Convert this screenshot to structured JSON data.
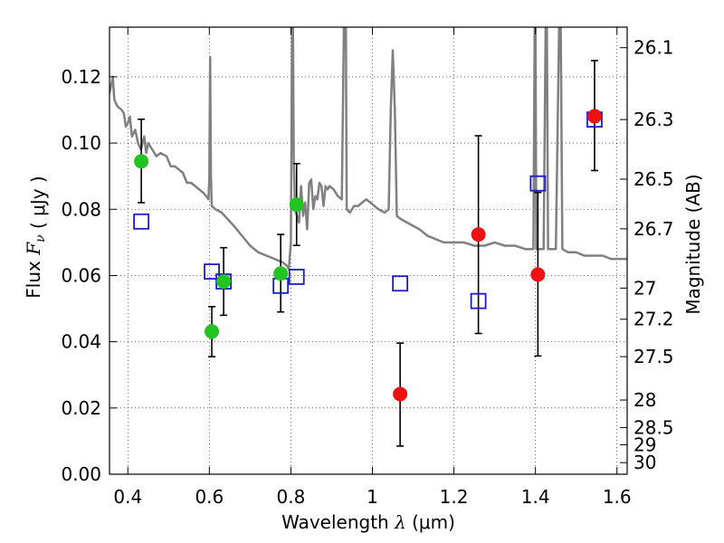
{
  "chart_data": {
    "type": "scatter",
    "xlabel": "Wavelength",
    "xlabel_symbol": "λ",
    "xlabel_unit": "(μm)",
    "ylabel": "Flux",
    "ylabel_symbol": "F",
    "ylabel_sub": "ν",
    "ylabel_unit": "( μJy )",
    "y2label": "Magnitude (AB)",
    "xlim": [
      0.355,
      1.625
    ],
    "ylim": [
      0.0,
      0.135
    ],
    "grid": true,
    "x_ticks": [
      0.4,
      0.6,
      0.8,
      1.0,
      1.2,
      1.4,
      1.6
    ],
    "x_tick_labels": [
      "0.4",
      "0.6",
      "0.8",
      "1",
      "1.2",
      "1.4",
      "1.6"
    ],
    "y_ticks": [
      0.0,
      0.02,
      0.04,
      0.06,
      0.08,
      0.1,
      0.12
    ],
    "y_tick_labels": [
      "0.00",
      "0.02",
      "0.04",
      "0.06",
      "0.08",
      "0.10",
      "0.12"
    ],
    "y2_ticks": [
      {
        "label": "26.1",
        "flux": 0.1288
      },
      {
        "label": "26.3",
        "flux": 0.1071
      },
      {
        "label": "26.5",
        "flux": 0.0891
      },
      {
        "label": "26.7",
        "flux": 0.0741
      },
      {
        "label": "27",
        "flux": 0.0562
      },
      {
        "label": "27.2",
        "flux": 0.0468
      },
      {
        "label": "27.5",
        "flux": 0.0355
      },
      {
        "label": "28",
        "flux": 0.0224
      },
      {
        "label": "28.5",
        "flux": 0.0141
      },
      {
        "label": "29",
        "flux": 0.0089
      },
      {
        "label": "30",
        "flux": 0.0035
      }
    ],
    "series": [
      {
        "marker": "circle",
        "color": "#22c322",
        "points": [
          {
            "x": 0.433,
            "y": 0.0945,
            "err_low": 0.082,
            "err_high": 0.1072
          },
          {
            "x": 0.606,
            "y": 0.0431,
            "err_low": 0.0355,
            "err_high": 0.0506
          },
          {
            "x": 0.635,
            "y": 0.0582,
            "err_low": 0.048,
            "err_high": 0.0684
          },
          {
            "x": 0.775,
            "y": 0.0606,
            "err_low": 0.049,
            "err_high": 0.0724
          },
          {
            "x": 0.814,
            "y": 0.0814,
            "err_low": 0.0691,
            "err_high": 0.0938
          }
        ]
      },
      {
        "marker": "circle",
        "color": "#ee1111",
        "points": [
          {
            "x": 1.068,
            "y": 0.0242,
            "err_low": 0.0085,
            "err_high": 0.0396
          },
          {
            "x": 1.26,
            "y": 0.0724,
            "err_low": 0.0425,
            "err_high": 0.1022
          },
          {
            "x": 1.406,
            "y": 0.0603,
            "err_low": 0.0357,
            "err_high": 0.0851
          },
          {
            "x": 1.545,
            "y": 0.1081,
            "err_low": 0.0917,
            "err_high": 0.1249
          }
        ]
      },
      {
        "marker": "square",
        "color": "#1a1acc",
        "points": [
          {
            "x": 0.433,
            "y": 0.0763
          },
          {
            "x": 0.606,
            "y": 0.0612
          },
          {
            "x": 0.635,
            "y": 0.0582
          },
          {
            "x": 0.775,
            "y": 0.0569
          },
          {
            "x": 0.814,
            "y": 0.0596
          },
          {
            "x": 1.068,
            "y": 0.0576
          },
          {
            "x": 1.26,
            "y": 0.0523
          },
          {
            "x": 1.406,
            "y": 0.0878
          },
          {
            "x": 1.545,
            "y": 0.1071
          }
        ]
      }
    ],
    "model_spectrum": {
      "color": "#808080",
      "points": [
        [
          0.355,
          0.115
        ],
        [
          0.363,
          0.12
        ],
        [
          0.367,
          0.113
        ],
        [
          0.375,
          0.111
        ],
        [
          0.385,
          0.11
        ],
        [
          0.39,
          0.109
        ],
        [
          0.395,
          0.105
        ],
        [
          0.4,
          0.106
        ],
        [
          0.405,
          0.108
        ],
        [
          0.41,
          0.102
        ],
        [
          0.418,
          0.104
        ],
        [
          0.425,
          0.1
        ],
        [
          0.432,
          0.098
        ],
        [
          0.44,
          0.102
        ],
        [
          0.445,
          0.097
        ],
        [
          0.45,
          0.1
        ],
        [
          0.46,
          0.098
        ],
        [
          0.47,
          0.096
        ],
        [
          0.48,
          0.097
        ],
        [
          0.495,
          0.096
        ],
        [
          0.505,
          0.093
        ],
        [
          0.515,
          0.093
        ],
        [
          0.525,
          0.092
        ],
        [
          0.535,
          0.091
        ],
        [
          0.545,
          0.088
        ],
        [
          0.555,
          0.088
        ],
        [
          0.565,
          0.087
        ],
        [
          0.575,
          0.086
        ],
        [
          0.585,
          0.085
        ],
        [
          0.592,
          0.084
        ],
        [
          0.598,
          0.083
        ],
        [
          0.6,
          0.09
        ],
        [
          0.602,
          0.126
        ],
        [
          0.604,
          0.09
        ],
        [
          0.606,
          0.081
        ],
        [
          0.615,
          0.08
        ],
        [
          0.63,
          0.079
        ],
        [
          0.645,
          0.077
        ],
        [
          0.66,
          0.075
        ],
        [
          0.68,
          0.072
        ],
        [
          0.7,
          0.069
        ],
        [
          0.72,
          0.067
        ],
        [
          0.74,
          0.066
        ],
        [
          0.76,
          0.065
        ],
        [
          0.78,
          0.064
        ],
        [
          0.79,
          0.063
        ],
        [
          0.795,
          0.062
        ],
        [
          0.8,
          0.07
        ],
        [
          0.803,
          0.135
        ],
        [
          0.805,
          0.135
        ],
        [
          0.807,
          0.095
        ],
        [
          0.81,
          0.08
        ],
        [
          0.82,
          0.076
        ],
        [
          0.825,
          0.087
        ],
        [
          0.83,
          0.078
        ],
        [
          0.835,
          0.082
        ],
        [
          0.84,
          0.074
        ],
        [
          0.845,
          0.088
        ],
        [
          0.85,
          0.089
        ],
        [
          0.855,
          0.08
        ],
        [
          0.86,
          0.084
        ],
        [
          0.865,
          0.083
        ],
        [
          0.87,
          0.088
        ],
        [
          0.875,
          0.087
        ],
        [
          0.88,
          0.081
        ],
        [
          0.885,
          0.087
        ],
        [
          0.89,
          0.086
        ],
        [
          0.895,
          0.087
        ],
        [
          0.905,
          0.086
        ],
        [
          0.915,
          0.084
        ],
        [
          0.925,
          0.083
        ],
        [
          0.93,
          0.135
        ],
        [
          0.935,
          0.135
        ],
        [
          0.937,
          0.08
        ],
        [
          0.945,
          0.079
        ],
        [
          0.955,
          0.081
        ],
        [
          0.965,
          0.081
        ],
        [
          0.975,
          0.082
        ],
        [
          0.985,
          0.083
        ],
        [
          0.995,
          0.082
        ],
        [
          1.005,
          0.081
        ],
        [
          1.015,
          0.08
        ],
        [
          1.03,
          0.079
        ],
        [
          1.04,
          0.08
        ],
        [
          1.045,
          0.11
        ],
        [
          1.05,
          0.128
        ],
        [
          1.055,
          0.11
        ],
        [
          1.06,
          0.078
        ],
        [
          1.07,
          0.077
        ],
        [
          1.085,
          0.076
        ],
        [
          1.1,
          0.075
        ],
        [
          1.115,
          0.074
        ],
        [
          1.135,
          0.072
        ],
        [
          1.155,
          0.071
        ],
        [
          1.175,
          0.07
        ],
        [
          1.2,
          0.07
        ],
        [
          1.225,
          0.07
        ],
        [
          1.25,
          0.069
        ],
        [
          1.275,
          0.069
        ],
        [
          1.3,
          0.07
        ],
        [
          1.325,
          0.069
        ],
        [
          1.35,
          0.069
        ],
        [
          1.375,
          0.068
        ],
        [
          1.395,
          0.068
        ],
        [
          1.398,
          0.135
        ],
        [
          1.4,
          0.135
        ],
        [
          1.402,
          0.068
        ],
        [
          1.42,
          0.068
        ],
        [
          1.425,
          0.135
        ],
        [
          1.428,
          0.135
        ],
        [
          1.431,
          0.068
        ],
        [
          1.45,
          0.068
        ],
        [
          1.458,
          0.135
        ],
        [
          1.462,
          0.135
        ],
        [
          1.466,
          0.068
        ],
        [
          1.48,
          0.067
        ],
        [
          1.5,
          0.067
        ],
        [
          1.52,
          0.066
        ],
        [
          1.545,
          0.066
        ],
        [
          1.565,
          0.066
        ],
        [
          1.585,
          0.065
        ],
        [
          1.605,
          0.065
        ],
        [
          1.625,
          0.065
        ]
      ]
    }
  }
}
